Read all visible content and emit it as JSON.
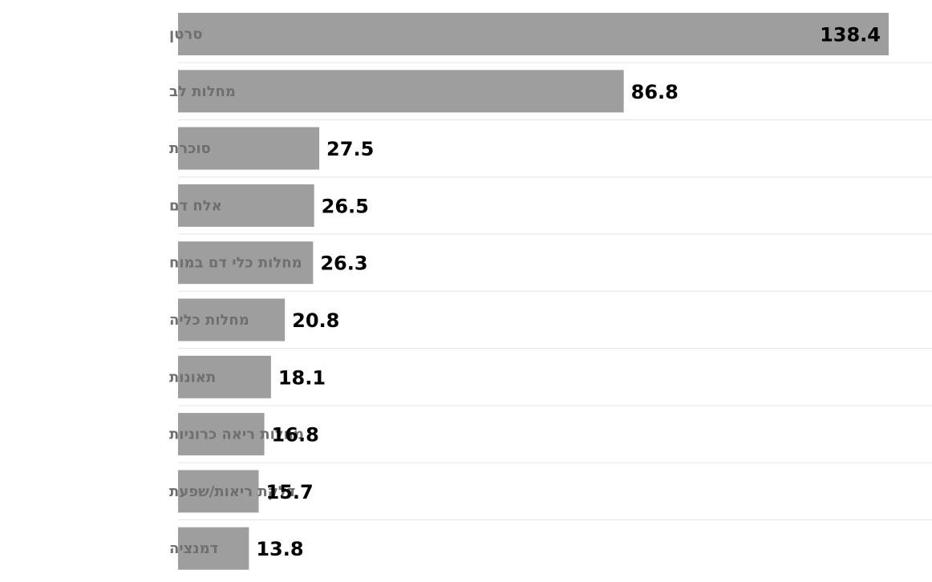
{
  "chart_data": {
    "type": "bar",
    "orientation": "horizontal",
    "title": "",
    "xlabel": "",
    "ylabel": "",
    "categories": [
      "סרטן",
      "מחלות לב",
      "סוכרת",
      "אלח דם",
      "מחלות כלי דם במוח",
      "מחלות כליה",
      "תאונות",
      "מחלות ריאה כרוניות",
      "דלקת ריאות/שפעת",
      "דמנציה"
    ],
    "values": [
      138.4,
      86.8,
      27.5,
      26.5,
      26.3,
      20.8,
      18.1,
      16.8,
      15.7,
      13.8
    ],
    "value_labels": [
      "138.4",
      "86.8",
      "27.5",
      "26.5",
      "26.3",
      "20.8",
      "18.1",
      "16.8",
      "15.7",
      "13.8"
    ],
    "xlim": [
      0,
      138.4
    ],
    "grid": false,
    "legend": "none",
    "colors": {
      "bar": "#9e9e9e",
      "category_text": "#6f6f6f",
      "value_text": "#000000",
      "separator": "#e6e6e6"
    }
  }
}
